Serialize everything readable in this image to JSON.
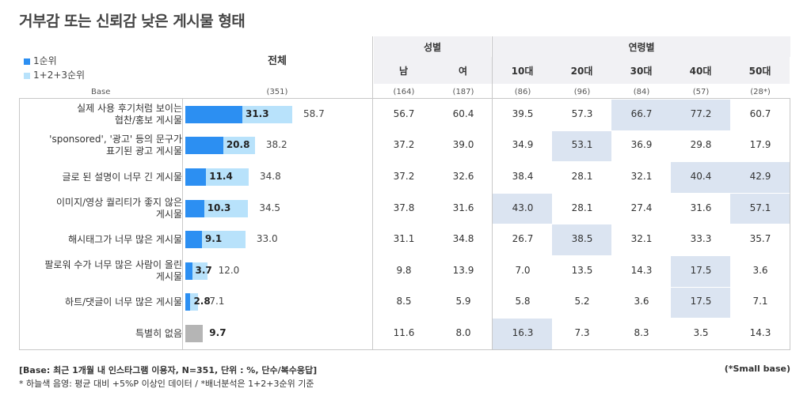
{
  "title": "거부감 또는 신뢰감 낮은 게시물 형태",
  "legend": [
    {
      "label": "1순위",
      "color": "#2c8ff2"
    },
    {
      "label": "1+2+3순위",
      "color": "#b8e2fb"
    }
  ],
  "header": {
    "total": "전체",
    "gender_group": "성별",
    "age_group": "연령별",
    "base_label": "Base",
    "total_base": "(351)"
  },
  "columns": [
    {
      "label": "남",
      "base": "(164)"
    },
    {
      "label": "여",
      "base": "(187)"
    },
    {
      "label": "10대",
      "base": "(86)"
    },
    {
      "label": "20대",
      "base": "(96)"
    },
    {
      "label": "30대",
      "base": "(84)"
    },
    {
      "label": "40대",
      "base": "(57)"
    },
    {
      "label": "50대",
      "base": "(28*)"
    }
  ],
  "chart_data": {
    "type": "bar",
    "title": "거부감 또는 신뢰감 낮은 게시물 형태",
    "xlim": [
      0,
      100
    ],
    "categories": [
      "실제 사용 후기처럼 보이는 협찬/홍보 게시물",
      "'sponsored', '광고' 등의 문구가 표기된 광고 게시물",
      "글로 된 설명이 너무 긴 게시물",
      "이미지/영상 퀄리티가 좋지 않은 게시물",
      "해시태그가 너무 많은 게시물",
      "팔로워 수가 너무 많은 사람이 올린 게시물",
      "하트/댓글이 너무 많은 게시물",
      "특별히 없음"
    ],
    "series": [
      {
        "name": "1순위",
        "values": [
          31.3,
          20.8,
          11.4,
          10.3,
          9.1,
          3.7,
          2.8,
          9.7
        ]
      },
      {
        "name": "1+2+3순위",
        "values": [
          58.7,
          38.2,
          34.8,
          34.5,
          33.0,
          12.0,
          7.1,
          null
        ]
      }
    ],
    "crosstab": [
      {
        "label_lines": [
          "실제 사용 후기처럼 보이는",
          "협찬/홍보 게시물"
        ],
        "first": "31.3",
        "total": "58.7",
        "grey": false,
        "values": [
          "56.7",
          "60.4",
          "39.5",
          "57.3",
          "66.7",
          "77.2",
          "60.7"
        ],
        "highlight": [
          false,
          false,
          false,
          false,
          true,
          true,
          false
        ]
      },
      {
        "label_lines": [
          "'sponsored', '광고' 등의 문구가",
          "표기된 광고 게시물"
        ],
        "first": "20.8",
        "total": "38.2",
        "grey": false,
        "values": [
          "37.2",
          "39.0",
          "34.9",
          "53.1",
          "36.9",
          "29.8",
          "17.9"
        ],
        "highlight": [
          false,
          false,
          false,
          true,
          false,
          false,
          false
        ]
      },
      {
        "label_lines": [
          "글로 된 설명이 너무 긴 게시물"
        ],
        "first": "11.4",
        "total": "34.8",
        "grey": false,
        "values": [
          "37.2",
          "32.6",
          "38.4",
          "28.1",
          "32.1",
          "40.4",
          "42.9"
        ],
        "highlight": [
          false,
          false,
          false,
          false,
          false,
          true,
          true
        ]
      },
      {
        "label_lines": [
          "이미지/영상 퀄리티가 좋지 않은",
          "게시물"
        ],
        "first": "10.3",
        "total": "34.5",
        "grey": false,
        "values": [
          "37.8",
          "31.6",
          "43.0",
          "28.1",
          "27.4",
          "31.6",
          "57.1"
        ],
        "highlight": [
          false,
          false,
          true,
          false,
          false,
          false,
          true
        ]
      },
      {
        "label_lines": [
          "해시태그가 너무 많은 게시물"
        ],
        "first": "9.1",
        "total": "33.0",
        "grey": false,
        "values": [
          "31.1",
          "34.8",
          "26.7",
          "38.5",
          "32.1",
          "33.3",
          "35.7"
        ],
        "highlight": [
          false,
          false,
          false,
          true,
          false,
          false,
          false
        ]
      },
      {
        "label_lines": [
          "팔로워 수가 너무 많은 사람이 올린",
          "게시물"
        ],
        "first": "3.7",
        "total": "12.0",
        "grey": false,
        "values": [
          "9.8",
          "13.9",
          "7.0",
          "13.5",
          "14.3",
          "17.5",
          "3.6"
        ],
        "highlight": [
          false,
          false,
          false,
          false,
          false,
          true,
          false
        ]
      },
      {
        "label_lines": [
          "하트/댓글이 너무 많은 게시물"
        ],
        "first": "2.8",
        "total": "7.1",
        "grey": false,
        "values": [
          "8.5",
          "5.9",
          "5.8",
          "5.2",
          "3.6",
          "17.5",
          "7.1"
        ],
        "highlight": [
          false,
          false,
          false,
          false,
          false,
          true,
          false
        ]
      },
      {
        "label_lines": [
          "특별히 없음"
        ],
        "first": "9.7",
        "total": null,
        "grey": true,
        "values": [
          "11.6",
          "8.0",
          "16.3",
          "7.3",
          "8.3",
          "3.5",
          "14.3"
        ],
        "highlight": [
          false,
          false,
          true,
          false,
          false,
          false,
          false
        ]
      }
    ]
  },
  "footer": {
    "base_note": "[Base: 최근 1개월 내 인스타그램 이용자, N=351, 단위 : %, 단수/복수응답]",
    "note": "* 하늘색 음영: 평균 대비 +5%P 이상인 데이터 / *배너분석은 1+2+3순위 기준",
    "small_base": "(*Small base)"
  }
}
